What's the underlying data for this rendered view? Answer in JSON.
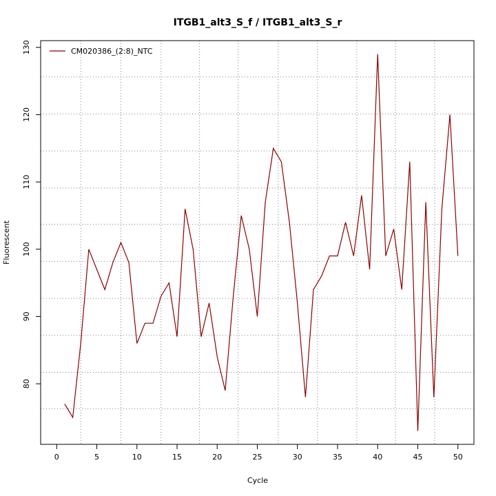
{
  "chart_data": {
    "type": "line",
    "title": "ITGB1_alt3_S_f / ITGB1_alt3_S_r",
    "xlabel": "Cycle",
    "ylabel": "Fluorescent",
    "xlim": [
      -2,
      52
    ],
    "ylim": [
      71,
      131
    ],
    "x_ticks": [
      0,
      5,
      10,
      15,
      20,
      25,
      30,
      35,
      40,
      45,
      50
    ],
    "y_ticks": [
      80,
      90,
      100,
      110,
      120,
      130
    ],
    "grid": true,
    "grid_x": [
      3,
      8,
      13,
      17.8,
      22.6,
      27.6,
      32.5,
      37.4,
      42.2,
      47.1
    ],
    "grid_y": [
      76.3,
      81.7,
      87.2,
      92.7,
      98.2,
      103.7,
      109.1,
      114.6,
      120.1,
      125.6
    ],
    "legend_position": "top-left",
    "series": [
      {
        "name": "CM020386_(2:8)_NTC",
        "color": "#8b0000",
        "x": [
          1,
          2,
          3,
          4,
          5,
          6,
          7,
          8,
          9,
          10,
          11,
          12,
          13,
          14,
          15,
          16,
          17,
          18,
          19,
          20,
          21,
          22,
          23,
          24,
          25,
          26,
          27,
          28,
          29,
          30,
          31,
          32,
          33,
          34,
          35,
          36,
          37,
          38,
          39,
          40,
          41,
          42,
          43,
          44,
          45,
          46,
          47,
          48,
          49,
          50
        ],
        "values": [
          77,
          75,
          86,
          100,
          97,
          94,
          98,
          101,
          98,
          86,
          89,
          89,
          93,
          95,
          87,
          106,
          100,
          87,
          92,
          84,
          79,
          93,
          105,
          100,
          90,
          107,
          115,
          113,
          104,
          92,
          78,
          94,
          96,
          99,
          99,
          104,
          99,
          108,
          97,
          129,
          99,
          103,
          94,
          113,
          73,
          107,
          78,
          106,
          120,
          99
        ]
      }
    ]
  }
}
